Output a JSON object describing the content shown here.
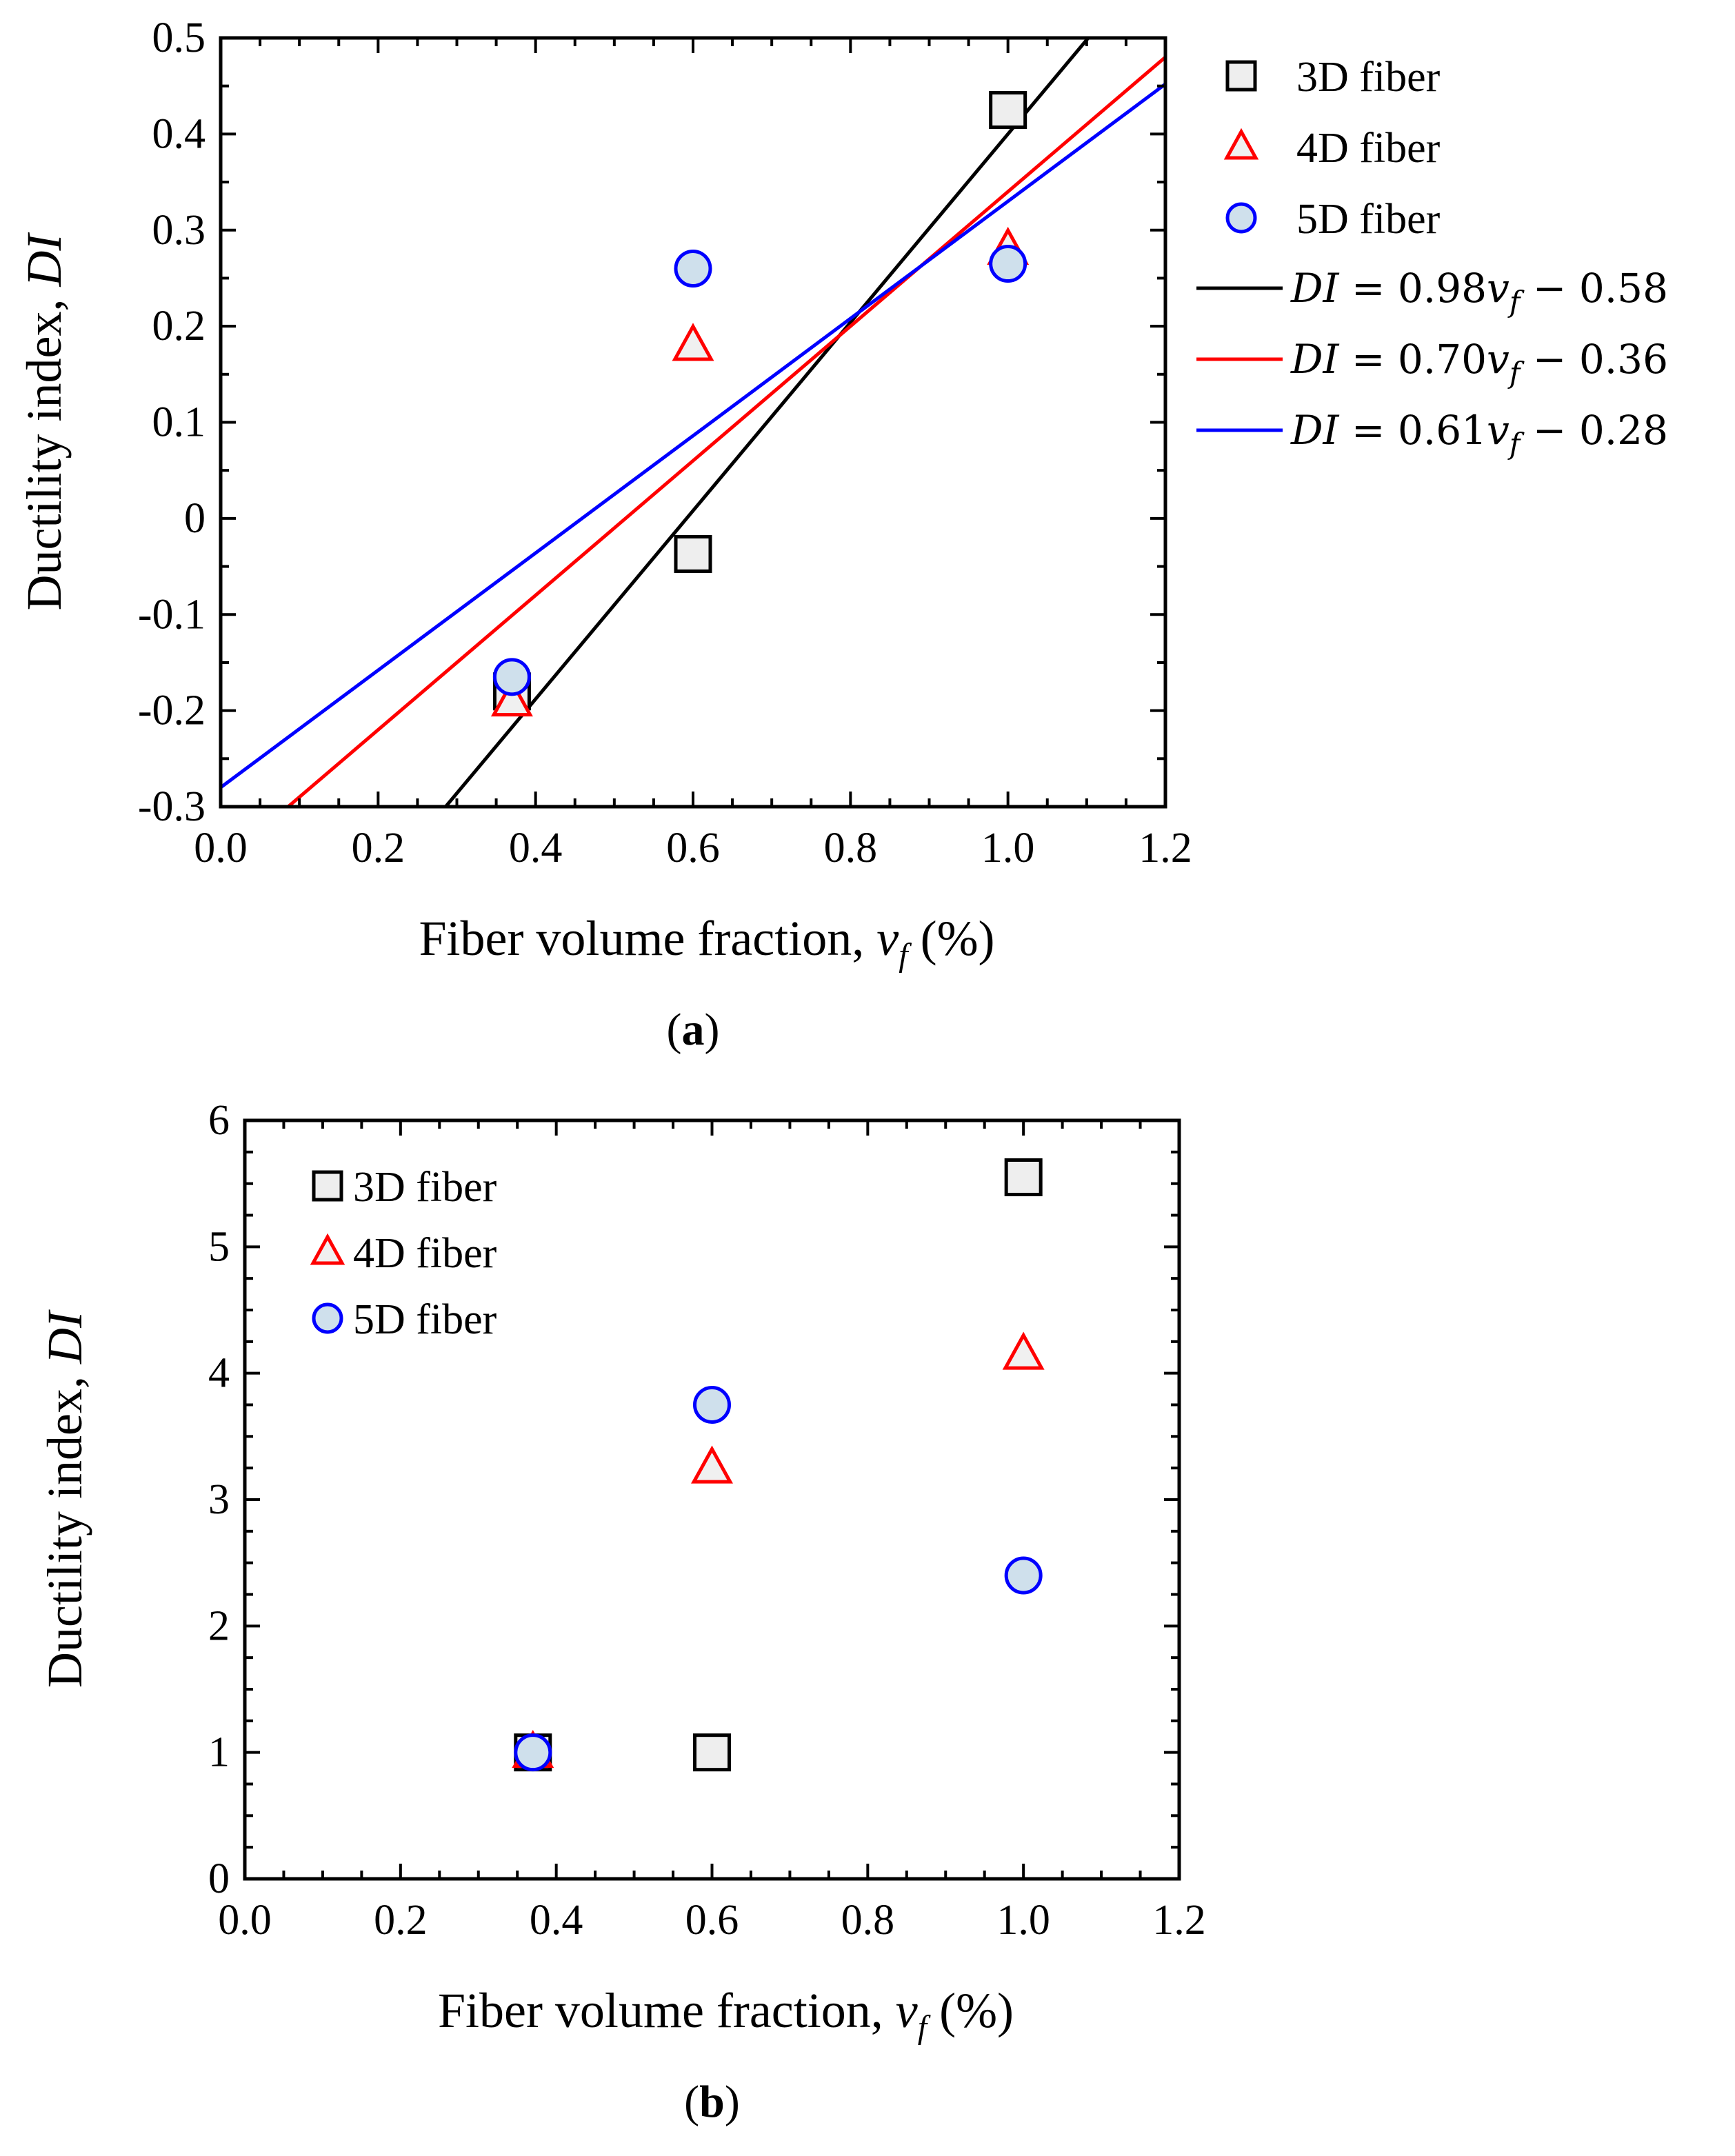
{
  "chart_data": [
    {
      "type": "scatter",
      "panel": "a",
      "panel_label": "a",
      "xlabel": "Fiber volume  fraction,",
      "xlabel_var": "v",
      "xlabel_sub": "f",
      "xlabel_unit": "(%)",
      "ylabel": "Ductility  index,",
      "ylabel_var": "DI",
      "xlim": [
        0.0,
        1.2
      ],
      "ylim": [
        -0.3,
        0.5
      ],
      "x_ticks": [
        "0.0",
        "0.2",
        "0.4",
        "0.6",
        "0.8",
        "1.0",
        "1.2"
      ],
      "y_ticks": [
        "0.5",
        "0.4",
        "0.3",
        "0.2",
        "0.1",
        "0",
        "-0.1",
        "-0.2",
        "-0.3"
      ],
      "series": [
        {
          "name": "3D fiber",
          "marker": "square",
          "color": "#000000",
          "fill": "#eeeeee",
          "points": [
            [
              0.37,
              -0.18
            ],
            [
              0.6,
              -0.037
            ],
            [
              1.0,
              0.425
            ]
          ]
        },
        {
          "name": "4D fiber",
          "marker": "triangle",
          "color": "#ff0000",
          "fill": "#f0f0f0",
          "points": [
            [
              0.37,
              -0.19
            ],
            [
              0.6,
              0.18
            ],
            [
              1.0,
              0.28
            ]
          ]
        },
        {
          "name": "5D fiber",
          "marker": "circle",
          "color": "#0000ff",
          "fill": "#cfe0ec",
          "points": [
            [
              0.37,
              -0.165
            ],
            [
              0.6,
              0.26
            ],
            [
              1.0,
              0.265
            ]
          ]
        }
      ],
      "fits": [
        {
          "label_lhs": "DI",
          "label_rhs": "= 0.98",
          "var": "v",
          "sub": "f",
          "tail": " − 0.58",
          "slope": 0.98,
          "intercept": -0.58,
          "color": "#000000"
        },
        {
          "label_lhs": "DI",
          "label_rhs": "= 0.70",
          "var": "v",
          "sub": "f",
          "tail": " − 0.36",
          "slope": 0.7,
          "intercept": -0.36,
          "color": "#ff0000"
        },
        {
          "label_lhs": "DI",
          "label_rhs": "= 0.61",
          "var": "v",
          "sub": "f",
          "tail": " − 0.28",
          "slope": 0.61,
          "intercept": -0.28,
          "color": "#0000ff"
        }
      ],
      "legend_location": "outside-right"
    },
    {
      "type": "scatter",
      "panel": "b",
      "panel_label": "b",
      "xlabel": "Fiber volume  fraction,",
      "xlabel_var": "v",
      "xlabel_sub": "f",
      "xlabel_unit": "(%)",
      "ylabel": "Ductility  index,",
      "ylabel_var": "DI",
      "xlim": [
        0.0,
        1.2
      ],
      "ylim": [
        0,
        6
      ],
      "x_ticks": [
        "0.0",
        "0.2",
        "0.4",
        "0.6",
        "0.8",
        "1.0",
        "1.2"
      ],
      "y_ticks": [
        "6",
        "5",
        "4",
        "3",
        "2",
        "1",
        "0"
      ],
      "series": [
        {
          "name": "3D fiber",
          "marker": "square",
          "color": "#000000",
          "fill": "#eeeeee",
          "points": [
            [
              0.37,
              1.0
            ],
            [
              0.6,
              1.0
            ],
            [
              1.0,
              5.55
            ]
          ]
        },
        {
          "name": "4D fiber",
          "marker": "triangle",
          "color": "#ff0000",
          "fill": "#f0f0f0",
          "points": [
            [
              0.37,
              1.0
            ],
            [
              0.6,
              3.25
            ],
            [
              1.0,
              4.15
            ]
          ]
        },
        {
          "name": "5D fiber",
          "marker": "circle",
          "color": "#0000ff",
          "fill": "#cfe0ec",
          "points": [
            [
              0.37,
              1.0
            ],
            [
              0.6,
              3.75
            ],
            [
              1.0,
              2.4
            ]
          ]
        }
      ],
      "legend_location": "top-left"
    }
  ]
}
